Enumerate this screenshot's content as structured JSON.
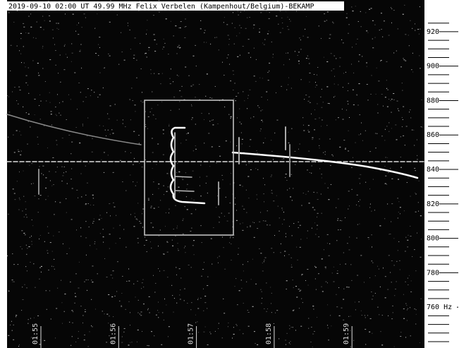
{
  "header": {
    "title": "2019-09-10 02:00 UT 49.99 MHz Felix Verbelen (Kampenhout/Belgium)-BEKAMP"
  },
  "y_axis": {
    "ylim": [
      736.3,
      938.4
    ],
    "ticks": [
      920,
      900,
      880,
      860,
      840,
      820,
      800,
      780,
      {
        "value": 760,
        "label": "760 Hz"
      }
    ]
  },
  "x_axis": {
    "labels": [
      "01:55",
      "01:56",
      "01:57",
      "01:58",
      "01:59"
    ]
  }
}
